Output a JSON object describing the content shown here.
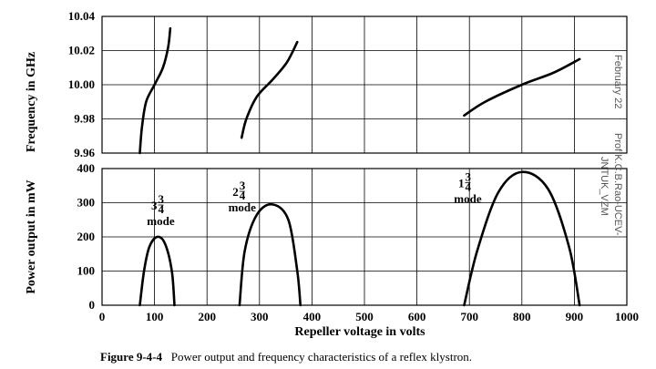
{
  "chart_data": [
    {
      "type": "line",
      "title": "",
      "ylabel": "Frequency in GHz",
      "xlim": [
        0,
        1000
      ],
      "ylim": [
        9.96,
        10.04
      ],
      "yticks": [
        "9.96",
        "9.98",
        "10.00",
        "10.02",
        "10.04"
      ],
      "grid": true,
      "series": [
        {
          "name": "",
          "points": [
            [
              72,
              9.96
            ],
            [
              76,
              9.975
            ],
            [
              84,
              9.99
            ],
            [
              100,
              10.0
            ],
            [
              116,
              10.01
            ],
            [
              126,
              10.022
            ],
            [
              130,
              10.033
            ]
          ]
        },
        {
          "name": "",
          "points": [
            [
              266,
              9.969
            ],
            [
              275,
              9.98
            ],
            [
              295,
              9.993
            ],
            [
              325,
              10.003
            ],
            [
              352,
              10.013
            ],
            [
              372,
              10.025
            ]
          ]
        },
        {
          "name": "",
          "points": [
            [
              690,
              9.982
            ],
            [
              730,
              9.99
            ],
            [
              800,
              10.0
            ],
            [
              860,
              10.007
            ],
            [
              910,
              10.015
            ]
          ]
        }
      ]
    },
    {
      "type": "line",
      "title": "",
      "xlabel": "Repeller voltage in volts",
      "ylabel": "Power output in mW",
      "xlim": [
        0,
        1000
      ],
      "ylim": [
        0,
        400
      ],
      "xticks": [
        "0",
        "100",
        "200",
        "300",
        "400",
        "500",
        "600",
        "700",
        "800",
        "900",
        "1000"
      ],
      "yticks": [
        "0",
        "100",
        "200",
        "300",
        "400"
      ],
      "grid": true,
      "series": [
        {
          "name": "",
          "points": [
            [
              72,
              0
            ],
            [
              80,
              100
            ],
            [
              90,
              170
            ],
            [
              105,
              200
            ],
            [
              120,
              180
            ],
            [
              133,
              100
            ],
            [
              138,
              0
            ]
          ]
        },
        {
          "name": "",
          "points": [
            [
              262,
              0
            ],
            [
              272,
              160
            ],
            [
              295,
              265
            ],
            [
              325,
              295
            ],
            [
              355,
              250
            ],
            [
              372,
              100
            ],
            [
              378,
              0
            ]
          ]
        },
        {
          "name": "",
          "points": [
            [
              690,
              0
            ],
            [
              715,
              160
            ],
            [
              755,
              330
            ],
            [
              800,
              390
            ],
            [
              850,
              340
            ],
            [
              890,
              170
            ],
            [
              910,
              0
            ]
          ]
        }
      ],
      "annotations": [
        {
          "mode": "3",
          "fraction_num": "3",
          "fraction_den": "4",
          "text": "mode",
          "x": 105,
          "y": 280
        },
        {
          "mode": "2",
          "fraction_num": "3",
          "fraction_den": "4",
          "text": "mode",
          "x": 260,
          "y": 320
        },
        {
          "mode": "1",
          "fraction_num": "3",
          "fraction_den": "4",
          "text": "mode",
          "x": 690,
          "y": 345
        }
      ]
    }
  ],
  "caption": {
    "label": "Figure 9-4-4",
    "text": "Power output and frequency characteristics of a reflex klystron."
  },
  "watermark": {
    "line1": "February 22",
    "line2": "Prof.K.C.B.Rao-UCEV-",
    "line3": "JNTUK_VZM"
  }
}
